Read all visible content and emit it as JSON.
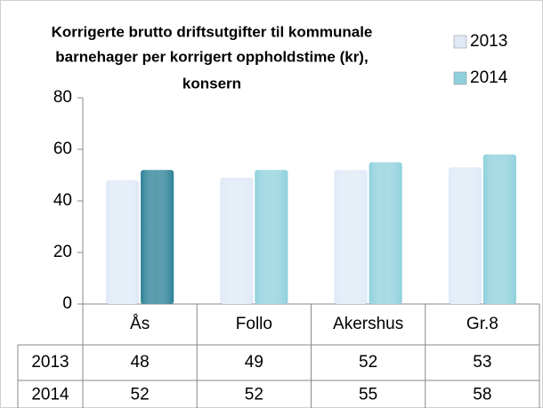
{
  "chart_data": {
    "type": "bar",
    "title": [
      "Korrigerte brutto driftsutgifter til kommunale",
      "barnehager per korrigert oppholdstime (kr),",
      "konsern"
    ],
    "categories": [
      "Ås",
      "Follo",
      "Akershus",
      "Gr.8"
    ],
    "series": [
      {
        "name": "2013",
        "color": "#dfe9f6",
        "colors": [
          "#dfe9f6",
          "#dfe9f6",
          "#dfe9f6",
          "#dfe9f6"
        ],
        "values": [
          48,
          49,
          52,
          53
        ]
      },
      {
        "name": "2014",
        "color": "#8ed0dc",
        "colors": [
          "#2b8196",
          "#8ed0dc",
          "#8ed0dc",
          "#8ed0dc"
        ],
        "values": [
          52,
          52,
          55,
          58
        ]
      }
    ],
    "ylim": [
      0,
      80
    ],
    "yticks": [
      0,
      20,
      40,
      60,
      80
    ],
    "grid": false,
    "legend": "top-right",
    "data_table": true
  }
}
